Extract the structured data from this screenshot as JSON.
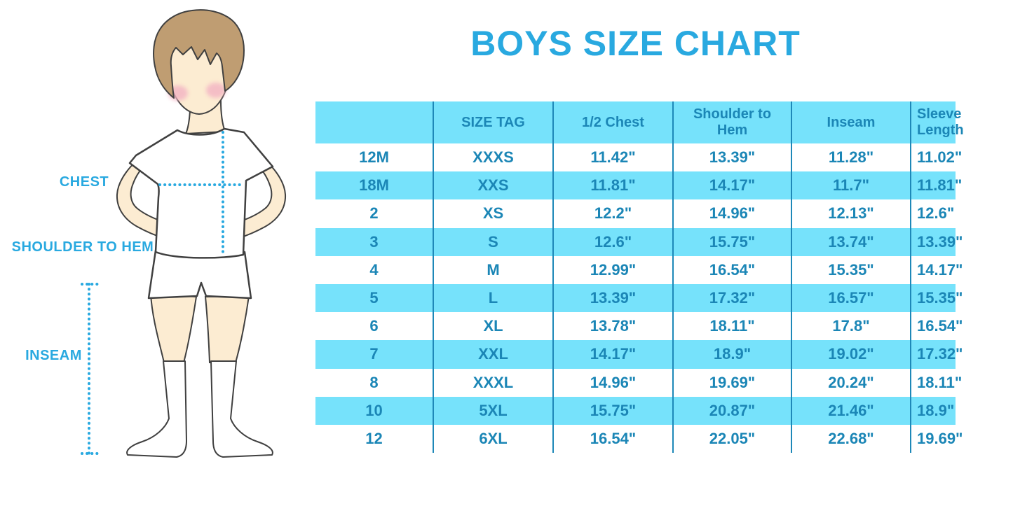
{
  "title": {
    "text": "BOYS SIZE CHART"
  },
  "theme": {
    "accent": "#29a9e0",
    "table-text": "#1b86b6",
    "row-blue": "#76e2fb",
    "grid-line": "#1e88b8",
    "hair": "#bf9d72",
    "skin": "#fcecd2",
    "cheek": "#f3b3c3",
    "outline": "#404040",
    "garment": "#ffffff"
  },
  "figure": {
    "description": "boy-illustration-with-measurement-lines",
    "labels": [
      {
        "id": "chest",
        "text": "CHEST"
      },
      {
        "id": "shoulder-to-hem",
        "text": "SHOULDER TO HEM"
      },
      {
        "id": "inseam",
        "text": "INSEAM"
      }
    ]
  },
  "chart_data": {
    "type": "table",
    "title": "BOYS SIZE CHART",
    "measurement_unit": "inches",
    "columns": [
      "",
      "SIZE TAG",
      "1/2 Chest",
      "Shoulder to Hem",
      "Inseam",
      "Sleeve Length"
    ],
    "rows": [
      [
        "12M",
        "XXXS",
        "11.42\"",
        "13.39\"",
        "11.28\"",
        "11.02\""
      ],
      [
        "18M",
        "XXS",
        "11.81\"",
        "14.17\"",
        "11.7\"",
        "11.81\""
      ],
      [
        "2",
        "XS",
        "12.2\"",
        "14.96\"",
        "12.13\"",
        "12.6\""
      ],
      [
        "3",
        "S",
        "12.6\"",
        "15.75\"",
        "13.74\"",
        "13.39\""
      ],
      [
        "4",
        "M",
        "12.99\"",
        "16.54\"",
        "15.35\"",
        "14.17\""
      ],
      [
        "5",
        "L",
        "13.39\"",
        "17.32\"",
        "16.57\"",
        "15.35\""
      ],
      [
        "6",
        "XL",
        "13.78\"",
        "18.11\"",
        "17.8\"",
        "16.54\""
      ],
      [
        "7",
        "XXL",
        "14.17\"",
        "18.9\"",
        "19.02\"",
        "17.32\""
      ],
      [
        "8",
        "XXXL",
        "14.96\"",
        "19.69\"",
        "20.24\"",
        "18.11\""
      ],
      [
        "10",
        "5XL",
        "15.75\"",
        "20.87\"",
        "21.46\"",
        "18.9\""
      ],
      [
        "12",
        "6XL",
        "16.54\"",
        "22.05\"",
        "22.68\"",
        "19.69\""
      ]
    ],
    "striped_rows": true,
    "header_background": "#76e2fb",
    "stripe_background": "#76e2fb"
  }
}
